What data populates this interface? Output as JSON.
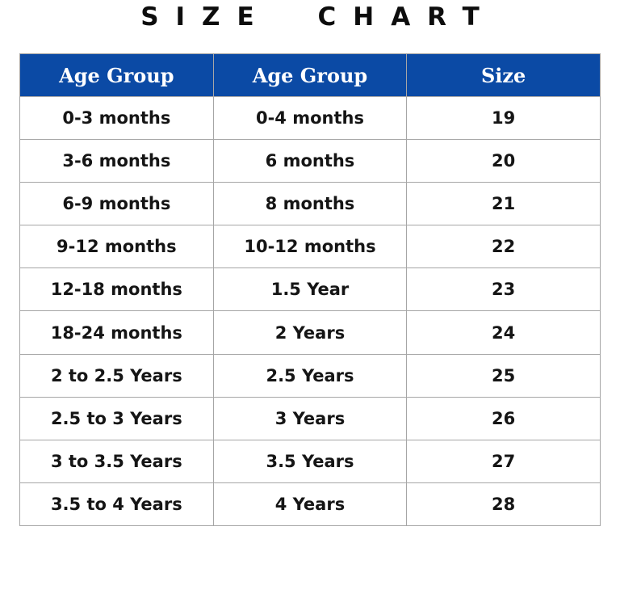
{
  "title": "SIZE CHART",
  "table": {
    "header_bg": "#0b4aa5",
    "header_text_color": "#ffffff",
    "border_color": "#a6a6a6",
    "columns": [
      "Age Group",
      "Age Group",
      "Size"
    ],
    "rows": [
      [
        "0-3 months",
        "0-4 months",
        "19"
      ],
      [
        "3-6 months",
        "6 months",
        "20"
      ],
      [
        "6-9 months",
        "8 months",
        "21"
      ],
      [
        "9-12 months",
        "10-12 months",
        "22"
      ],
      [
        "12-18 months",
        "1.5 Year",
        "23"
      ],
      [
        "18-24 months",
        "2 Years",
        "24"
      ],
      [
        "2 to 2.5 Years",
        "2.5 Years",
        "25"
      ],
      [
        "2.5 to 3 Years",
        "3 Years",
        "26"
      ],
      [
        "3 to 3.5 Years",
        "3.5 Years",
        "27"
      ],
      [
        "3.5 to 4 Years",
        "4 Years",
        "28"
      ]
    ]
  }
}
